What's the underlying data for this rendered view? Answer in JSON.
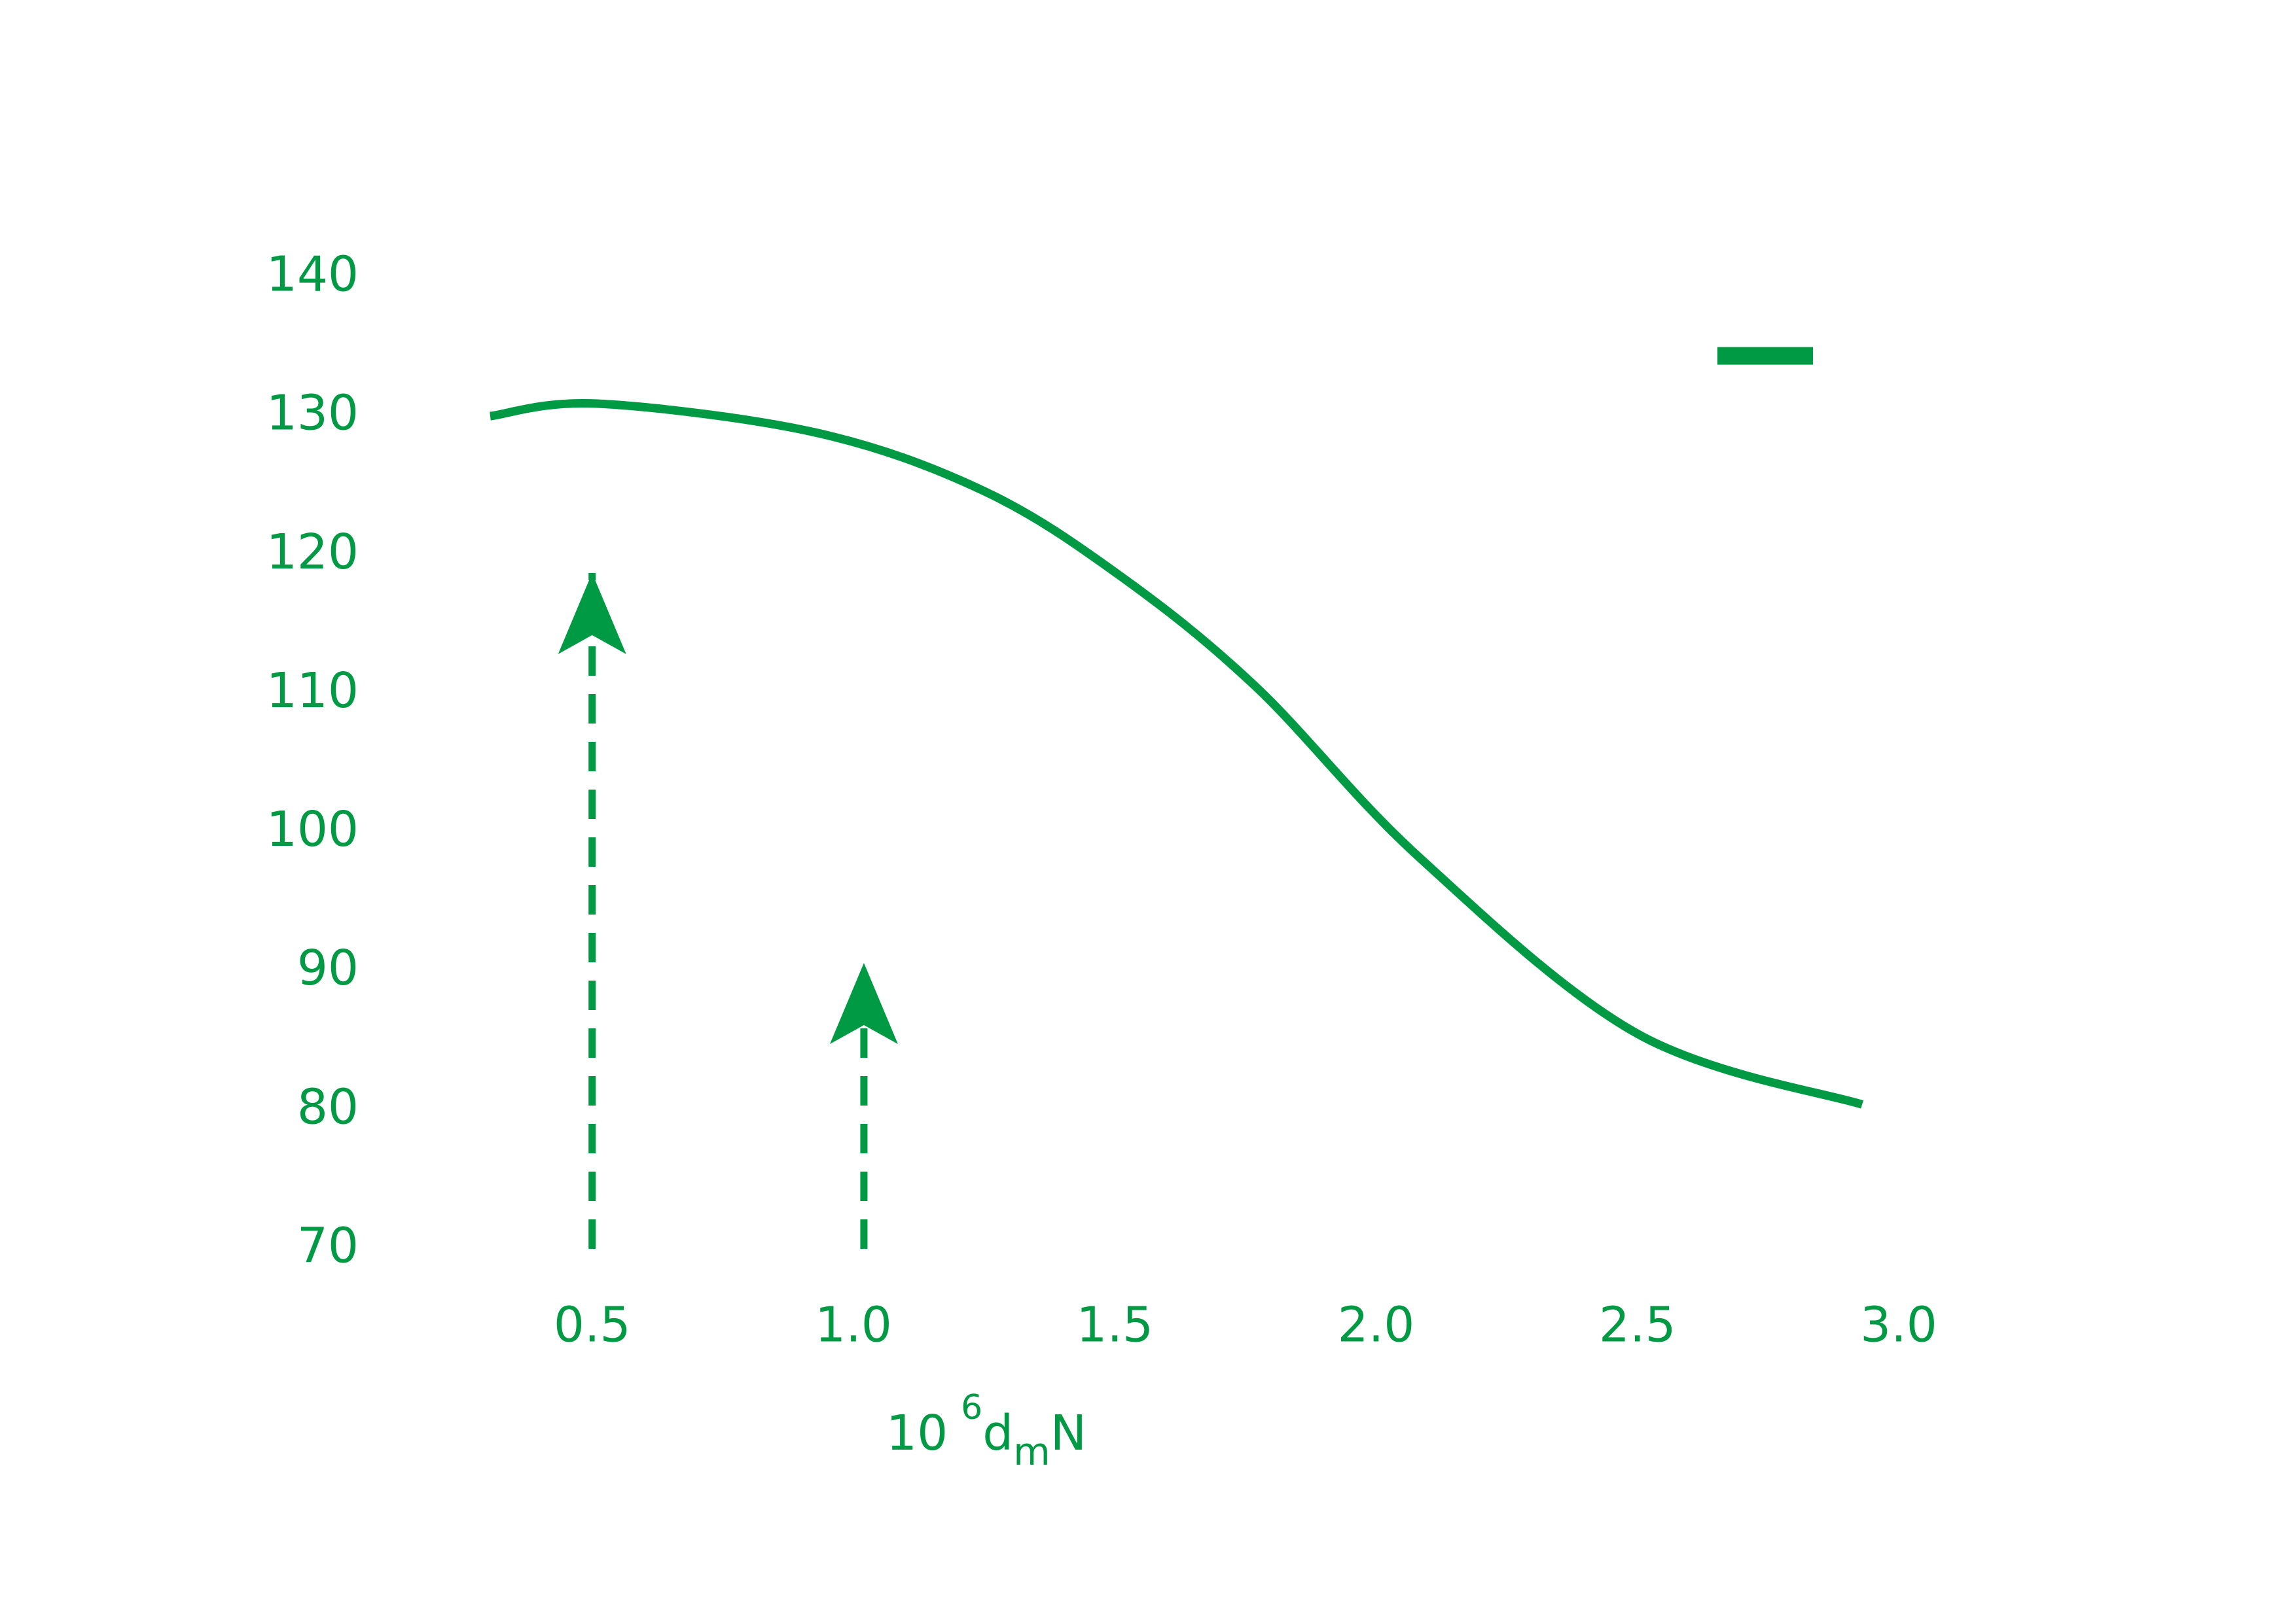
{
  "chart_data": {
    "type": "line",
    "x_label": {
      "base": "10",
      "exponent": "6",
      "symbol": "d",
      "subscript": "m",
      "suffix": "N"
    },
    "x": [
      0.305,
      0.51,
      0.93,
      1.25,
      1.51,
      1.77,
      2.08,
      2.5,
      2.93
    ],
    "series": [
      {
        "color": "#009a44",
        "values": [
          130.0,
          130.9,
          128.8,
          124.6,
          118.5,
          110.5,
          98.3,
          85.5,
          80.4
        ]
      }
    ],
    "arrows": [
      {
        "x": 0.5,
        "from": 70,
        "to": 118.7
      },
      {
        "x": 1.02,
        "from": 70,
        "to": 90.6
      }
    ],
    "xlim": [
      0.3,
      3.0
    ],
    "xticks": [
      {
        "value": 0.5,
        "label": "0.5"
      },
      {
        "value": 1.0,
        "label": "1.0"
      },
      {
        "value": 1.5,
        "label": "1.5"
      },
      {
        "value": 2.0,
        "label": "2.0"
      },
      {
        "value": 2.5,
        "label": "2.5"
      },
      {
        "value": 3.0,
        "label": "3.0"
      }
    ],
    "ylim": [
      70,
      140
    ],
    "yticks": [
      70,
      80,
      90,
      100,
      110,
      120,
      130,
      140
    ],
    "grid": false,
    "legend": "upper right"
  }
}
